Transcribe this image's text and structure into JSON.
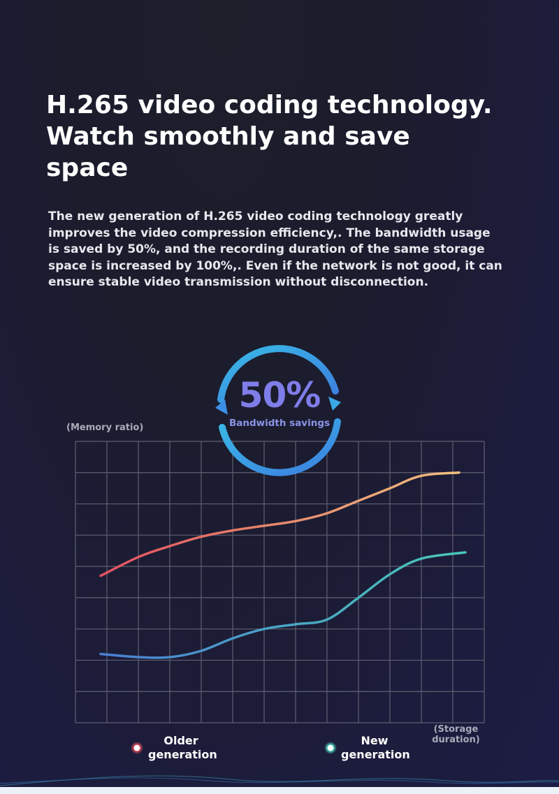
{
  "header": {
    "title": "H.265 video coding technology. Watch smoothly and save space",
    "description": "The new generation of H.265 video coding technology greatly improves the video compression efficiency,. The bandwidth usage is saved by 50%, and the recording duration of the same storage space is increased by 100%,. Even if the network is not good, it can ensure stable video transmission without disconnection."
  },
  "badge": {
    "value": "50%",
    "label": "Bandwidth savings",
    "color": "#3fa6e8"
  },
  "chart_data": {
    "type": "line",
    "ylabel": "(Memory ratio)",
    "xlabel": "(Storage duration)",
    "grid": true,
    "xlim": [
      0,
      13
    ],
    "ylim": [
      0,
      9
    ],
    "legend_placement": "bottom",
    "series": [
      {
        "name": "Older generation",
        "color_start": "#e0505f",
        "color_end": "#f0c07e",
        "x": [
          0.8,
          2,
          3,
          4,
          5,
          6,
          7,
          8,
          9,
          10,
          11,
          12.2
        ],
        "y": [
          4.7,
          5.3,
          5.65,
          5.95,
          6.15,
          6.3,
          6.45,
          6.7,
          7.1,
          7.5,
          7.9,
          8.0
        ]
      },
      {
        "name": "New generation",
        "color_start": "#4a7fd2",
        "color_end": "#49c8b5",
        "x": [
          0.8,
          2,
          3,
          4,
          5,
          6,
          7,
          8,
          9,
          10,
          11,
          12.4
        ],
        "y": [
          2.2,
          2.1,
          2.1,
          2.3,
          2.7,
          3.0,
          3.15,
          3.3,
          4.0,
          4.75,
          5.25,
          5.45
        ]
      }
    ]
  }
}
